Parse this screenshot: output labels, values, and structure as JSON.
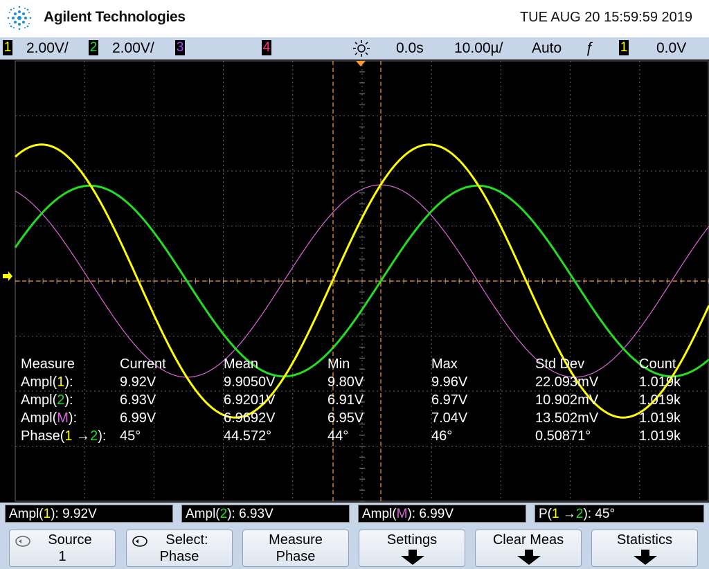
{
  "header": {
    "brand": "Agilent Technologies",
    "datetime": "TUE AUG 20 15:59:59 2019"
  },
  "statusbar": {
    "ch1_num": "1",
    "ch1_scale": "2.00V/",
    "ch2_num": "2",
    "ch2_scale": "2.00V/",
    "ch3_num": "3",
    "ch4_num": "4",
    "time_delay": "0.0s",
    "time_scale": "10.00µ/",
    "trigger_mode": "Auto",
    "trigger_slope": "ƒ",
    "trigger_source": "1",
    "trigger_level": "0.0V"
  },
  "measurements": {
    "headers": [
      "Measure",
      "Current",
      "Mean",
      "Min",
      "Max",
      "Std Dev",
      "Count"
    ],
    "rows": [
      {
        "label_pre": "Ampl(",
        "label_ch": "1",
        "label_post": "):",
        "current": "9.92V",
        "mean": "9.9050V",
        "min": "9.80V",
        "max": "9.96V",
        "stddev": "22.093mV",
        "count": "1.019k"
      },
      {
        "label_pre": "Ampl(",
        "label_ch": "2",
        "label_post": "):",
        "current": "6.93V",
        "mean": "6.9201V",
        "min": "6.91V",
        "max": "6.97V",
        "stddev": "10.902mV",
        "count": "1.019k"
      },
      {
        "label_pre": "Ampl(",
        "label_ch": "M",
        "label_post": "):",
        "current": "6.99V",
        "mean": "6.9692V",
        "min": "6.95V",
        "max": "7.04V",
        "stddev": "13.502mV",
        "count": "1.019k"
      },
      {
        "label_pre": "Phase(",
        "label_ch": "1",
        "label_arrow": " →",
        "label_ch2": "2",
        "label_post": "):",
        "current": "45°",
        "mean": "44.572°",
        "min": "44°",
        "max": "46°",
        "stddev": "0.50871°",
        "count": "1.019k"
      }
    ]
  },
  "readouts": {
    "r1_pre": "Ampl(",
    "r1_ch": "1",
    "r1_post": "): 9.92V",
    "r2_pre": "Ampl(",
    "r2_ch": "2",
    "r2_post": "): 6.93V",
    "r3_pre": "Ampl(",
    "r3_ch": "M",
    "r3_post": "): 6.99V",
    "r4_pre": "P(",
    "r4_ch": "1",
    "r4_arrow": " →",
    "r4_ch2": "2",
    "r4_post": "): 45°"
  },
  "softkeys": {
    "k1_l1": "Source",
    "k1_l2": "1",
    "k2_l1": "Select:",
    "k2_l2": "Phase",
    "k3_l1": "Measure",
    "k3_l2": "Phase",
    "k4_l1": "Settings",
    "k5_l1": "Clear Meas",
    "k6_l1": "Statistics"
  },
  "colors": {
    "ch1": "#ffff00",
    "ch2": "#22dd22",
    "ch3": "#aa44ff",
    "ch4": "#ff3377",
    "math": "#dd66dd",
    "cursor": "#ff9933",
    "grid": "#666666"
  },
  "icons": [
    "agilent-logo-icon",
    "trigger-slope-icon",
    "rotate-knob-icon",
    "down-arrow-icon",
    "ground-marker-icon",
    "trigger-position-icon"
  ]
}
